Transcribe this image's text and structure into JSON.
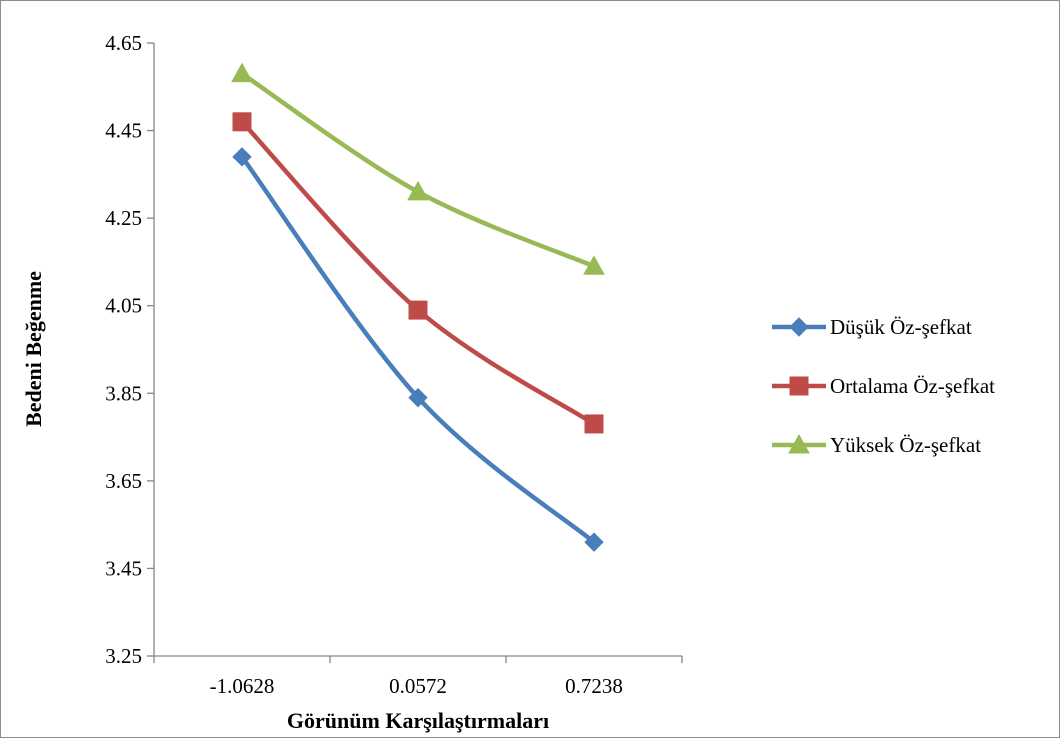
{
  "chart_data": {
    "type": "line",
    "title": "",
    "xlabel": "Görünüm Karşılaştırmaları",
    "ylabel": "Bedeni Beğenme",
    "categories": [
      "-1.0628",
      "0.0572",
      "0.7238"
    ],
    "ylim": [
      3.25,
      4.65
    ],
    "yticks": [
      "3.25",
      "3.45",
      "3.65",
      "3.85",
      "4.05",
      "4.25",
      "4.45",
      "4.65"
    ],
    "grid": false,
    "legend_position": "right",
    "series": [
      {
        "name": "Düşük Öz-şefkat",
        "values": [
          4.39,
          3.84,
          3.51
        ],
        "color": "#4a7ebb",
        "marker": "diamond"
      },
      {
        "name": "Ortalama Öz-şefkat",
        "values": [
          4.47,
          4.04,
          3.78
        ],
        "color": "#be4b48",
        "marker": "square"
      },
      {
        "name": "Yüksek Öz-şefkat",
        "values": [
          4.58,
          4.31,
          4.14
        ],
        "color": "#98b954",
        "marker": "triangle"
      }
    ]
  }
}
